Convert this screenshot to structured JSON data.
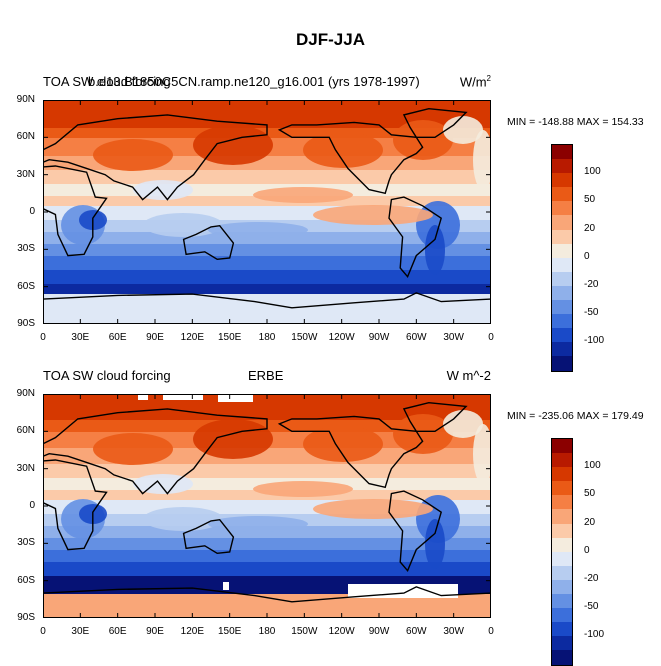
{
  "title": "DJF-JJA",
  "lat_ticks": [
    "90N",
    "60N",
    "30N",
    "0",
    "30S",
    "60S",
    "90S"
  ],
  "lon_ticks": [
    "0",
    "30E",
    "60E",
    "90E",
    "120E",
    "150E",
    "180",
    "150W",
    "120W",
    "90W",
    "60W",
    "30W",
    "0"
  ],
  "colorbar": {
    "colors": [
      "#8b0000",
      "#b81a00",
      "#d63800",
      "#ea5a16",
      "#f57f44",
      "#f9a678",
      "#fbcaa9",
      "#f4ecde",
      "#dfe8f6",
      "#b7cdf0",
      "#8fb0ea",
      "#6490e3",
      "#3c6fdb",
      "#1a4ac8",
      "#0c2aa0",
      "#061275"
    ],
    "labels": [
      "100",
      "50",
      "20",
      "0",
      "-20",
      "-50",
      "-100"
    ]
  },
  "panels": [
    {
      "left_label": "TOA SW cloud forcing",
      "center_label": "b.e13.B1850C5CN.ramp.ne120_g16.001 (yrs 1978-1997)",
      "right_label": "W/m",
      "right_label_sup": "2",
      "min_max": "MIN = -148.88 MAX = 154.33"
    },
    {
      "left_label": "TOA SW cloud forcing",
      "center_label": "ERBE",
      "right_label": "W m^-2",
      "right_label_sup": "",
      "min_max": "MIN = -235.06 MAX = 179.49"
    }
  ]
}
